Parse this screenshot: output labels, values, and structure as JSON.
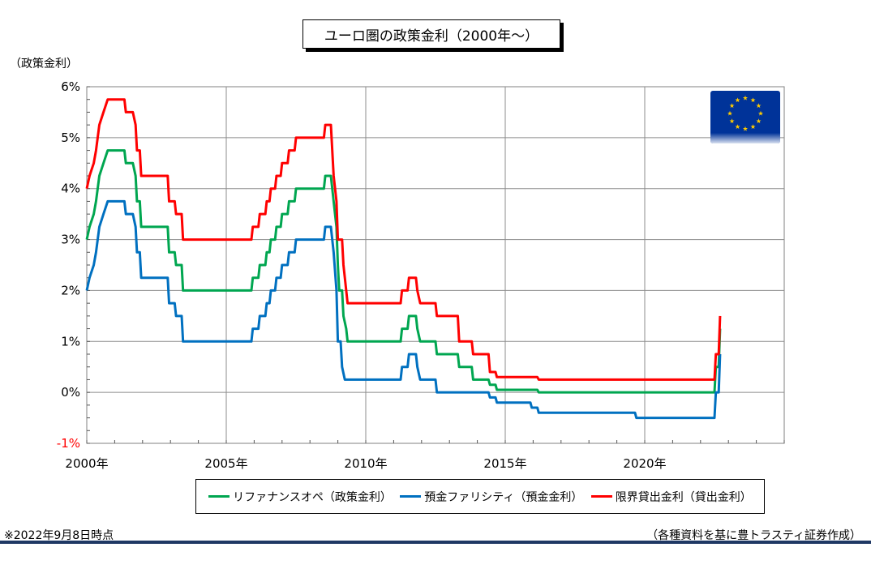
{
  "chart_data": {
    "type": "line",
    "title": "ユーロ圏の政策金利（2000年～）",
    "ylabel": "（政策金利）",
    "ylim": [
      -1,
      6
    ],
    "xlim": [
      2000,
      2025
    ],
    "yticks": [
      "6%",
      "5%",
      "4%",
      "3%",
      "2%",
      "1%",
      "0%",
      "-1%"
    ],
    "ytick_values": [
      6,
      5,
      4,
      3,
      2,
      1,
      0,
      -1
    ],
    "xticks": [
      "2000年",
      "2005年",
      "2010年",
      "2015年",
      "2020年"
    ],
    "xtick_values": [
      2000,
      2005,
      2010,
      2015,
      2020
    ],
    "grid": true,
    "series": [
      {
        "name": "リファナンスオペ（政策金利）",
        "color": "#00a650",
        "points": [
          [
            2000.0,
            3.0
          ],
          [
            2000.1,
            3.25
          ],
          [
            2000.25,
            3.5
          ],
          [
            2000.33,
            3.75
          ],
          [
            2000.45,
            4.25
          ],
          [
            2000.6,
            4.5
          ],
          [
            2000.75,
            4.75
          ],
          [
            2001.35,
            4.75
          ],
          [
            2001.4,
            4.5
          ],
          [
            2001.65,
            4.5
          ],
          [
            2001.75,
            4.25
          ],
          [
            2001.8,
            3.75
          ],
          [
            2001.9,
            3.75
          ],
          [
            2001.95,
            3.25
          ],
          [
            2002.9,
            3.25
          ],
          [
            2002.95,
            2.75
          ],
          [
            2003.15,
            2.75
          ],
          [
            2003.2,
            2.5
          ],
          [
            2003.4,
            2.5
          ],
          [
            2003.45,
            2.0
          ],
          [
            2005.9,
            2.0
          ],
          [
            2005.95,
            2.25
          ],
          [
            2006.15,
            2.25
          ],
          [
            2006.2,
            2.5
          ],
          [
            2006.4,
            2.5
          ],
          [
            2006.45,
            2.75
          ],
          [
            2006.55,
            2.75
          ],
          [
            2006.6,
            3.0
          ],
          [
            2006.75,
            3.0
          ],
          [
            2006.8,
            3.25
          ],
          [
            2006.95,
            3.25
          ],
          [
            2007.0,
            3.5
          ],
          [
            2007.2,
            3.5
          ],
          [
            2007.25,
            3.75
          ],
          [
            2007.45,
            3.75
          ],
          [
            2007.5,
            4.0
          ],
          [
            2008.5,
            4.0
          ],
          [
            2008.55,
            4.25
          ],
          [
            2008.75,
            4.25
          ],
          [
            2008.85,
            3.75
          ],
          [
            2008.95,
            3.25
          ],
          [
            2009.0,
            2.5
          ],
          [
            2009.05,
            2.0
          ],
          [
            2009.15,
            2.0
          ],
          [
            2009.2,
            1.5
          ],
          [
            2009.3,
            1.25
          ],
          [
            2009.35,
            1.0
          ],
          [
            2011.25,
            1.0
          ],
          [
            2011.3,
            1.25
          ],
          [
            2011.5,
            1.25
          ],
          [
            2011.55,
            1.5
          ],
          [
            2011.8,
            1.5
          ],
          [
            2011.85,
            1.25
          ],
          [
            2011.95,
            1.0
          ],
          [
            2012.5,
            1.0
          ],
          [
            2012.55,
            0.75
          ],
          [
            2013.3,
            0.75
          ],
          [
            2013.35,
            0.5
          ],
          [
            2013.8,
            0.5
          ],
          [
            2013.85,
            0.25
          ],
          [
            2014.4,
            0.25
          ],
          [
            2014.45,
            0.15
          ],
          [
            2014.65,
            0.15
          ],
          [
            2014.7,
            0.05
          ],
          [
            2016.15,
            0.05
          ],
          [
            2016.2,
            0.0
          ],
          [
            2022.5,
            0.0
          ],
          [
            2022.55,
            0.5
          ],
          [
            2022.65,
            0.5
          ],
          [
            2022.7,
            1.25
          ]
        ]
      },
      {
        "name": "預金ファリシティ（預金金利）",
        "color": "#0070c0",
        "points": [
          [
            2000.0,
            2.0
          ],
          [
            2000.1,
            2.25
          ],
          [
            2000.25,
            2.5
          ],
          [
            2000.33,
            2.75
          ],
          [
            2000.45,
            3.25
          ],
          [
            2000.6,
            3.5
          ],
          [
            2000.75,
            3.75
          ],
          [
            2001.35,
            3.75
          ],
          [
            2001.4,
            3.5
          ],
          [
            2001.65,
            3.5
          ],
          [
            2001.75,
            3.25
          ],
          [
            2001.8,
            2.75
          ],
          [
            2001.9,
            2.75
          ],
          [
            2001.95,
            2.25
          ],
          [
            2002.9,
            2.25
          ],
          [
            2002.95,
            1.75
          ],
          [
            2003.15,
            1.75
          ],
          [
            2003.2,
            1.5
          ],
          [
            2003.4,
            1.5
          ],
          [
            2003.45,
            1.0
          ],
          [
            2005.9,
            1.0
          ],
          [
            2005.95,
            1.25
          ],
          [
            2006.15,
            1.25
          ],
          [
            2006.2,
            1.5
          ],
          [
            2006.4,
            1.5
          ],
          [
            2006.45,
            1.75
          ],
          [
            2006.55,
            1.75
          ],
          [
            2006.6,
            2.0
          ],
          [
            2006.75,
            2.0
          ],
          [
            2006.8,
            2.25
          ],
          [
            2006.95,
            2.25
          ],
          [
            2007.0,
            2.5
          ],
          [
            2007.2,
            2.5
          ],
          [
            2007.25,
            2.75
          ],
          [
            2007.45,
            2.75
          ],
          [
            2007.5,
            3.0
          ],
          [
            2008.5,
            3.0
          ],
          [
            2008.55,
            3.25
          ],
          [
            2008.75,
            3.25
          ],
          [
            2008.85,
            2.75
          ],
          [
            2008.95,
            2.0
          ],
          [
            2009.0,
            1.0
          ],
          [
            2009.1,
            1.0
          ],
          [
            2009.15,
            0.5
          ],
          [
            2009.25,
            0.25
          ],
          [
            2011.25,
            0.25
          ],
          [
            2011.3,
            0.5
          ],
          [
            2011.5,
            0.5
          ],
          [
            2011.55,
            0.75
          ],
          [
            2011.8,
            0.75
          ],
          [
            2011.85,
            0.5
          ],
          [
            2011.95,
            0.25
          ],
          [
            2012.5,
            0.25
          ],
          [
            2012.55,
            0.0
          ],
          [
            2014.4,
            0.0
          ],
          [
            2014.45,
            -0.1
          ],
          [
            2014.65,
            -0.1
          ],
          [
            2014.7,
            -0.2
          ],
          [
            2015.9,
            -0.2
          ],
          [
            2015.95,
            -0.3
          ],
          [
            2016.15,
            -0.3
          ],
          [
            2016.2,
            -0.4
          ],
          [
            2019.65,
            -0.4
          ],
          [
            2019.7,
            -0.5
          ],
          [
            2022.5,
            -0.5
          ],
          [
            2022.55,
            0.0
          ],
          [
            2022.65,
            0.0
          ],
          [
            2022.7,
            0.75
          ]
        ]
      },
      {
        "name": "限界貸出金利（貸出金利）",
        "color": "#ff0000",
        "points": [
          [
            2000.0,
            4.0
          ],
          [
            2000.1,
            4.25
          ],
          [
            2000.25,
            4.5
          ],
          [
            2000.33,
            4.75
          ],
          [
            2000.45,
            5.25
          ],
          [
            2000.6,
            5.5
          ],
          [
            2000.75,
            5.75
          ],
          [
            2001.35,
            5.75
          ],
          [
            2001.4,
            5.5
          ],
          [
            2001.65,
            5.5
          ],
          [
            2001.75,
            5.25
          ],
          [
            2001.8,
            4.75
          ],
          [
            2001.9,
            4.75
          ],
          [
            2001.95,
            4.25
          ],
          [
            2002.9,
            4.25
          ],
          [
            2002.95,
            3.75
          ],
          [
            2003.15,
            3.75
          ],
          [
            2003.2,
            3.5
          ],
          [
            2003.4,
            3.5
          ],
          [
            2003.45,
            3.0
          ],
          [
            2005.9,
            3.0
          ],
          [
            2005.95,
            3.25
          ],
          [
            2006.15,
            3.25
          ],
          [
            2006.2,
            3.5
          ],
          [
            2006.4,
            3.5
          ],
          [
            2006.45,
            3.75
          ],
          [
            2006.55,
            3.75
          ],
          [
            2006.6,
            4.0
          ],
          [
            2006.75,
            4.0
          ],
          [
            2006.8,
            4.25
          ],
          [
            2006.95,
            4.25
          ],
          [
            2007.0,
            4.5
          ],
          [
            2007.2,
            4.5
          ],
          [
            2007.25,
            4.75
          ],
          [
            2007.45,
            4.75
          ],
          [
            2007.5,
            5.0
          ],
          [
            2008.5,
            5.0
          ],
          [
            2008.55,
            5.25
          ],
          [
            2008.75,
            5.25
          ],
          [
            2008.85,
            4.25
          ],
          [
            2008.95,
            3.75
          ],
          [
            2009.0,
            3.0
          ],
          [
            2009.15,
            3.0
          ],
          [
            2009.2,
            2.5
          ],
          [
            2009.3,
            2.0
          ],
          [
            2009.35,
            1.75
          ],
          [
            2011.25,
            1.75
          ],
          [
            2011.3,
            2.0
          ],
          [
            2011.5,
            2.0
          ],
          [
            2011.55,
            2.25
          ],
          [
            2011.8,
            2.25
          ],
          [
            2011.85,
            2.0
          ],
          [
            2011.95,
            1.75
          ],
          [
            2012.5,
            1.75
          ],
          [
            2012.55,
            1.5
          ],
          [
            2013.3,
            1.5
          ],
          [
            2013.35,
            1.0
          ],
          [
            2013.8,
            1.0
          ],
          [
            2013.85,
            0.75
          ],
          [
            2014.4,
            0.75
          ],
          [
            2014.45,
            0.4
          ],
          [
            2014.65,
            0.4
          ],
          [
            2014.7,
            0.3
          ],
          [
            2016.15,
            0.3
          ],
          [
            2016.2,
            0.25
          ],
          [
            2022.5,
            0.25
          ],
          [
            2022.55,
            0.75
          ],
          [
            2022.65,
            0.75
          ],
          [
            2022.7,
            1.5
          ]
        ]
      }
    ],
    "legend_position": "bottom"
  },
  "footnote": "※2022年9月8日時点",
  "source": "（各種資料を基に豊トラスティ証券作成）",
  "colors": {
    "bottom_rule": "#1f3864",
    "flag_blue": "#003399",
    "flag_star": "#ffcc00"
  },
  "icons": {
    "flag": "eu-flag-icon"
  }
}
